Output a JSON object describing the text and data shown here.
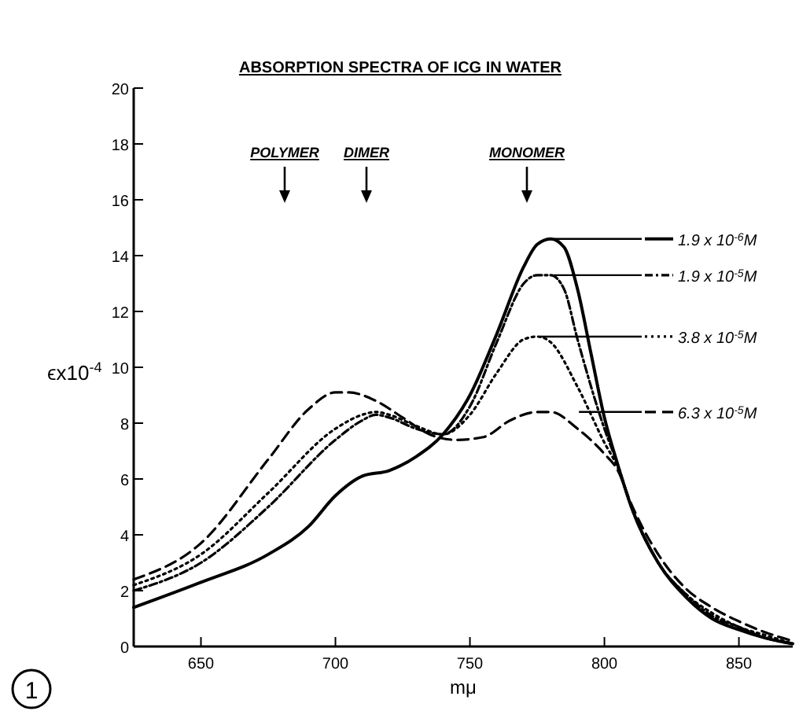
{
  "chart_data": {
    "type": "line",
    "title": "ABSORPTION SPECTRA OF ICG IN WATER",
    "xlabel": "mμ",
    "ylabel": "ϵx10$^{-4}$",
    "xlim": [
      625,
      870
    ],
    "ylim": [
      0,
      20
    ],
    "xticks": [
      650,
      700,
      750,
      800,
      850
    ],
    "yticks": [
      0,
      2,
      4,
      6,
      8,
      10,
      12,
      14,
      16,
      18,
      20
    ],
    "grid": false,
    "legend": "right",
    "series": [
      {
        "name": "1.9 x 10$^{-6}$M",
        "color": "#000000",
        "line_style": "solid",
        "x": [
          625,
          650,
          675,
          690,
          700,
          710,
          720,
          730,
          740,
          750,
          760,
          770,
          775,
          780,
          785,
          790,
          795,
          800,
          805,
          810,
          820,
          830,
          840,
          850,
          860,
          870
        ],
        "values": [
          1.4,
          2.3,
          3.3,
          4.3,
          5.4,
          6.1,
          6.3,
          6.8,
          7.6,
          9.0,
          11.2,
          13.6,
          14.4,
          14.6,
          14.3,
          12.8,
          10.5,
          8.2,
          6.5,
          5.0,
          3.0,
          1.8,
          1.0,
          0.6,
          0.3,
          0.1
        ]
      },
      {
        "name": "1.9 x 10$^{-5}$M",
        "color": "#000000",
        "line_style": "dashdot",
        "x": [
          625,
          650,
          675,
          700,
          710,
          715,
          720,
          730,
          740,
          750,
          760,
          770,
          775,
          780,
          785,
          790,
          800,
          805,
          810,
          820,
          830,
          840,
          850,
          860,
          870
        ],
        "values": [
          2.0,
          3.0,
          5.0,
          7.4,
          8.1,
          8.3,
          8.2,
          7.8,
          7.6,
          8.6,
          10.9,
          13.0,
          13.3,
          13.3,
          12.8,
          11.0,
          7.8,
          6.5,
          5.0,
          3.0,
          1.9,
          1.1,
          0.7,
          0.3,
          0.1
        ]
      },
      {
        "name": "3.8 x 10$^{-5}$M",
        "color": "#000000",
        "line_style": "dotted",
        "x": [
          625,
          650,
          675,
          700,
          710,
          715,
          720,
          730,
          740,
          750,
          760,
          770,
          775,
          780,
          790,
          800,
          805,
          810,
          820,
          830,
          840,
          850,
          860,
          870
        ],
        "values": [
          2.2,
          3.3,
          5.5,
          7.8,
          8.3,
          8.4,
          8.3,
          7.9,
          7.6,
          8.3,
          9.8,
          11.0,
          11.1,
          10.9,
          9.3,
          7.3,
          6.4,
          5.0,
          3.0,
          1.9,
          1.2,
          0.7,
          0.4,
          0.1
        ]
      },
      {
        "name": "6.3 x 10$^{-5}$M",
        "color": "#000000",
        "line_style": "dashed",
        "x": [
          625,
          650,
          675,
          690,
          700,
          705,
          715,
          725,
          735,
          745,
          755,
          765,
          775,
          780,
          790,
          800,
          805,
          810,
          820,
          830,
          840,
          850,
          860,
          870
        ],
        "values": [
          2.4,
          3.7,
          6.7,
          8.5,
          9.1,
          9.1,
          8.8,
          8.2,
          7.6,
          7.4,
          7.5,
          8.1,
          8.4,
          8.4,
          7.8,
          6.9,
          6.3,
          5.1,
          3.3,
          2.1,
          1.4,
          0.9,
          0.5,
          0.2
        ]
      }
    ],
    "annotations": [
      "POLYMER",
      "DIMER",
      "MONOMER",
      "1"
    ]
  }
}
